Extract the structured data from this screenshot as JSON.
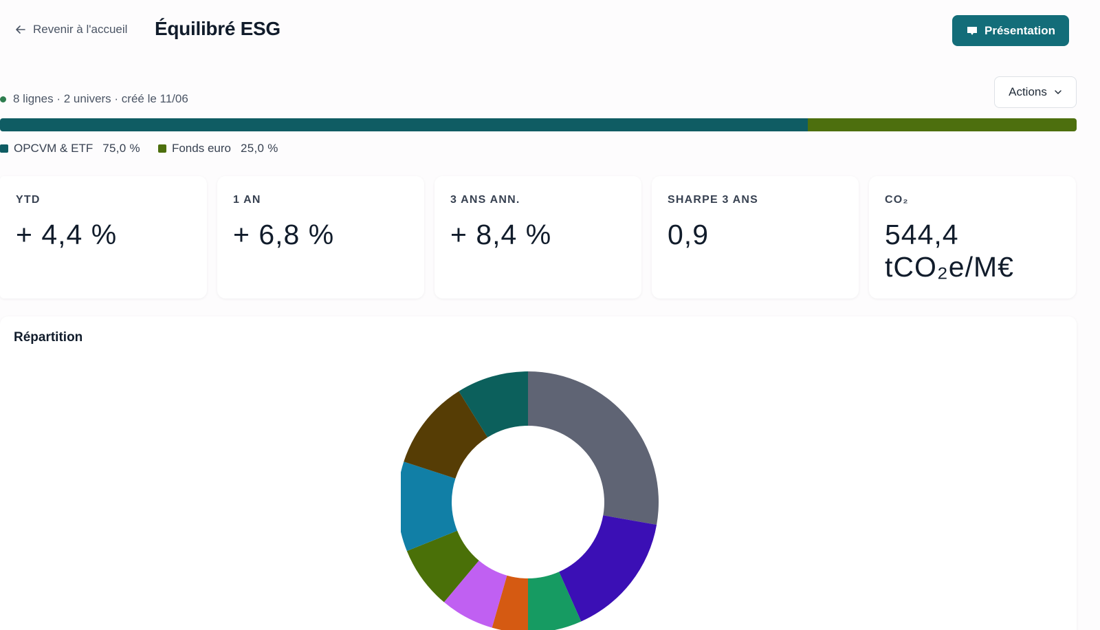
{
  "header": {
    "back_label": "Revenir à l'accueil",
    "title": "Équilibré ESG",
    "present_label": "Présentation"
  },
  "meta": {
    "text": "8 lignes · 2 univers · créé le 11/06",
    "actions_label": "Actions"
  },
  "allocation": {
    "items": [
      {
        "label": "OPCVM & ETF",
        "pct_text": "75,0 %",
        "value": 75.0,
        "color": "#0f5c63"
      },
      {
        "label": "Fonds euro",
        "pct_text": "25,0 %",
        "value": 25.0,
        "color": "#4d6f0e"
      }
    ]
  },
  "kpis": [
    {
      "label": "YTD",
      "value": "+ 4,4 %"
    },
    {
      "label": "1 AN",
      "value": "+ 6,8 %"
    },
    {
      "label": "3 ANS ANN.",
      "value": "+ 8,4 %"
    },
    {
      "label": "SHARPE 3 ANS",
      "value": "0,9"
    },
    {
      "label": "CO₂",
      "value": "544,4 tCO₂e/M€"
    }
  ],
  "repartition": {
    "title": "Répartition"
  },
  "chart_data": {
    "type": "pie",
    "variant": "donut",
    "values": [
      25,
      14,
      6,
      4,
      6,
      7,
      10,
      10,
      8
    ],
    "colors": [
      "#5f6474",
      "#3b0fb5",
      "#169b62",
      "#d55a12",
      "#c060f2",
      "#4a7008",
      "#117fa6",
      "#563d05",
      "#0c605c"
    ]
  }
}
